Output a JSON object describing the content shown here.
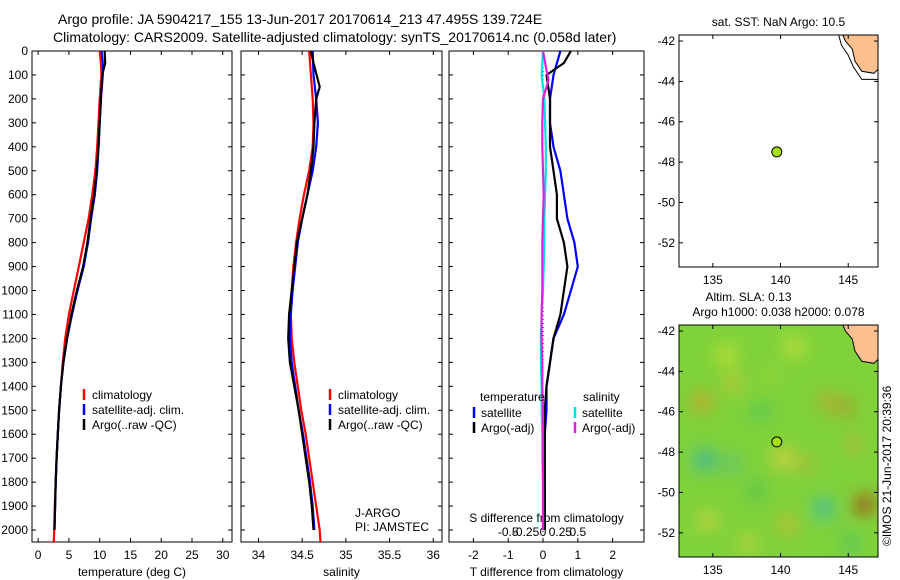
{
  "title_line1": "Argo profile: JA 5904217_155 13-Jun-2017 20170614_213 47.495S 139.724E",
  "title_line2": "Climatology: CARS2009. Satellite-adjusted climatology: synTS_20170614.nc (0.058d later)",
  "colors": {
    "clim": "#ff0000",
    "sat": "#0000ff",
    "argo": "#000000",
    "sat_s": "#00e0e0",
    "argo_s": "#e020e0",
    "land": "#ffc090",
    "float": "#a8e000"
  },
  "depth_axis": {
    "ticks": [
      0,
      100,
      200,
      300,
      400,
      500,
      600,
      700,
      800,
      900,
      1000,
      1100,
      1200,
      1300,
      1400,
      1500,
      1600,
      1700,
      1800,
      1900,
      2000
    ],
    "ylim": [
      0,
      2050
    ]
  },
  "chart_data": [
    {
      "id": "temperature",
      "type": "line",
      "xlabel": "temperature (deg C)",
      "xlim": [
        -1,
        31.5
      ],
      "xticks": [
        0,
        5,
        10,
        15,
        20,
        25,
        30
      ],
      "legend": [
        "climatology",
        "satellite-adj. clim.",
        "Argo(..raw -QC)"
      ],
      "series": [
        {
          "name": "climatology",
          "color": "clim",
          "points": [
            [
              10,
              0
            ],
            [
              10.2,
              50
            ],
            [
              10.3,
              100
            ],
            [
              10,
              200
            ],
            [
              9.8,
              300
            ],
            [
              9.6,
              400
            ],
            [
              9.3,
              500
            ],
            [
              8.8,
              600
            ],
            [
              8.2,
              700
            ],
            [
              7.4,
              800
            ],
            [
              6.6,
              900
            ],
            [
              5.8,
              1000
            ],
            [
              5.0,
              1100
            ],
            [
              4.4,
              1200
            ],
            [
              4.0,
              1300
            ],
            [
              3.7,
              1400
            ],
            [
              3.4,
              1500
            ],
            [
              3.2,
              1600
            ],
            [
              3.0,
              1700
            ],
            [
              2.85,
              1800
            ],
            [
              2.7,
              1900
            ],
            [
              2.6,
              2000
            ],
            [
              2.55,
              2050
            ]
          ]
        },
        {
          "name": "satellite-adj. clim.",
          "color": "sat",
          "points": [
            [
              10.3,
              0
            ],
            [
              10.5,
              50
            ],
            [
              10.5,
              100
            ],
            [
              10.2,
              200
            ],
            [
              10,
              300
            ],
            [
              9.8,
              400
            ],
            [
              9.6,
              500
            ],
            [
              9.2,
              600
            ],
            [
              8.6,
              700
            ],
            [
              8.1,
              800
            ],
            [
              7.4,
              900
            ],
            [
              6.4,
              1000
            ],
            [
              5.5,
              1100
            ],
            [
              4.7,
              1200
            ],
            [
              4.1,
              1300
            ],
            [
              3.7,
              1400
            ],
            [
              3.4,
              1500
            ],
            [
              3.2,
              1600
            ],
            [
              3.0,
              1700
            ],
            [
              2.85,
              1800
            ],
            [
              2.75,
              1900
            ],
            [
              2.65,
              2000
            ]
          ]
        },
        {
          "name": "Argo(..raw -QC)",
          "color": "argo",
          "points": [
            [
              10.8,
              0
            ],
            [
              10.9,
              50
            ],
            [
              10.4,
              100
            ],
            [
              10.2,
              200
            ],
            [
              10,
              300
            ],
            [
              9.8,
              400
            ],
            [
              9.5,
              500
            ],
            [
              9.1,
              600
            ],
            [
              8.5,
              700
            ],
            [
              8.0,
              800
            ],
            [
              7.3,
              900
            ],
            [
              6.3,
              1000
            ],
            [
              5.4,
              1100
            ],
            [
              4.7,
              1200
            ],
            [
              4.1,
              1300
            ],
            [
              3.7,
              1400
            ],
            [
              3.4,
              1500
            ],
            [
              3.2,
              1600
            ],
            [
              3.0,
              1700
            ],
            [
              2.85,
              1800
            ],
            [
              2.75,
              1900
            ],
            [
              2.65,
              2000
            ]
          ]
        }
      ]
    },
    {
      "id": "salinity",
      "type": "line",
      "xlabel": "salinity",
      "xlim": [
        33.8,
        36.1
      ],
      "xticks": [
        34,
        34.5,
        35,
        35.5,
        36
      ],
      "xticklabels": [
        "34",
        "34.5",
        "35",
        "35.5",
        "36"
      ],
      "legend": [
        "climatology",
        "satellite-adj. clim.",
        "Argo(..raw -QC)"
      ],
      "annotations": [
        "J-ARGO",
        "PI: JAMSTEC"
      ],
      "series": [
        {
          "name": "climatology",
          "color": "clim",
          "points": [
            [
              34.58,
              0
            ],
            [
              34.6,
              100
            ],
            [
              34.62,
              200
            ],
            [
              34.63,
              300
            ],
            [
              34.62,
              400
            ],
            [
              34.58,
              500
            ],
            [
              34.52,
              600
            ],
            [
              34.47,
              700
            ],
            [
              34.43,
              800
            ],
            [
              34.4,
              900
            ],
            [
              34.38,
              1000
            ],
            [
              34.37,
              1100
            ],
            [
              34.38,
              1200
            ],
            [
              34.41,
              1300
            ],
            [
              34.45,
              1400
            ],
            [
              34.49,
              1500
            ],
            [
              34.54,
              1600
            ],
            [
              34.58,
              1700
            ],
            [
              34.62,
              1800
            ],
            [
              34.66,
              1900
            ],
            [
              34.7,
              2000
            ],
            [
              34.71,
              2050
            ]
          ]
        },
        {
          "name": "satellite-adj. clim.",
          "color": "sat",
          "points": [
            [
              34.62,
              0
            ],
            [
              34.63,
              100
            ],
            [
              34.66,
              200
            ],
            [
              34.68,
              300
            ],
            [
              34.66,
              400
            ],
            [
              34.62,
              500
            ],
            [
              34.56,
              600
            ],
            [
              34.5,
              700
            ],
            [
              34.45,
              800
            ],
            [
              34.42,
              900
            ],
            [
              34.39,
              1000
            ],
            [
              34.37,
              1100
            ],
            [
              34.36,
              1200
            ],
            [
              34.38,
              1300
            ],
            [
              34.42,
              1400
            ],
            [
              34.46,
              1500
            ],
            [
              34.51,
              1600
            ],
            [
              34.55,
              1700
            ],
            [
              34.59,
              1800
            ],
            [
              34.62,
              1900
            ],
            [
              34.64,
              2000
            ]
          ]
        },
        {
          "name": "Argo(..raw -QC)",
          "color": "argo",
          "points": [
            [
              34.6,
              0
            ],
            [
              34.63,
              50
            ],
            [
              34.7,
              150
            ],
            [
              34.66,
              200
            ],
            [
              34.64,
              300
            ],
            [
              34.63,
              400
            ],
            [
              34.6,
              500
            ],
            [
              34.56,
              600
            ],
            [
              34.5,
              700
            ],
            [
              34.44,
              800
            ],
            [
              34.41,
              900
            ],
            [
              34.38,
              1000
            ],
            [
              34.35,
              1100
            ],
            [
              34.34,
              1200
            ],
            [
              34.36,
              1300
            ],
            [
              34.41,
              1400
            ],
            [
              34.46,
              1500
            ],
            [
              34.5,
              1600
            ],
            [
              34.54,
              1700
            ],
            [
              34.58,
              1800
            ],
            [
              34.61,
              1900
            ],
            [
              34.63,
              2000
            ]
          ]
        }
      ]
    },
    {
      "id": "difference",
      "type": "line",
      "xlabel": "T difference from climatology",
      "xlabel2": "S difference from climatology",
      "xlim": [
        -2.7,
        2.9
      ],
      "xticks": [
        -2,
        -1,
        0,
        1,
        2
      ],
      "xticks2": [
        -0.5,
        -0.25,
        0,
        0.25,
        0.5
      ],
      "xticklabels2": [
        "-0.5",
        "-0.25",
        "0",
        "0.25",
        "0.5"
      ],
      "legend_title_t": "temperature",
      "legend_title_s": "salinity",
      "legend_t": [
        "satellite",
        "Argo(-adj)"
      ],
      "legend_s": [
        "satellite",
        "Argo(-adj)"
      ],
      "series": [
        {
          "name": "T satellite",
          "color": "sat",
          "points": [
            [
              0.5,
              0
            ],
            [
              0.3,
              100
            ],
            [
              0.2,
              200
            ],
            [
              0.2,
              300
            ],
            [
              0.3,
              400
            ],
            [
              0.5,
              500
            ],
            [
              0.6,
              600
            ],
            [
              0.7,
              700
            ],
            [
              0.9,
              800
            ],
            [
              1.0,
              900
            ],
            [
              0.8,
              1000
            ],
            [
              0.6,
              1100
            ],
            [
              0.3,
              1200
            ],
            [
              0.2,
              1300
            ],
            [
              0.1,
              1400
            ],
            [
              0.1,
              1500
            ],
            [
              0.05,
              1600
            ],
            [
              0.05,
              1700
            ],
            [
              0.05,
              1800
            ],
            [
              0.05,
              1900
            ],
            [
              0.05,
              2000
            ]
          ]
        },
        {
          "name": "T Argo(-adj)",
          "color": "argo",
          "points": [
            [
              0.8,
              0
            ],
            [
              0.6,
              50
            ],
            [
              0.1,
              100
            ],
            [
              0.2,
              200
            ],
            [
              0.2,
              300
            ],
            [
              0.2,
              400
            ],
            [
              0.3,
              500
            ],
            [
              0.4,
              600
            ],
            [
              0.4,
              700
            ],
            [
              0.6,
              800
            ],
            [
              0.7,
              900
            ],
            [
              0.6,
              1000
            ],
            [
              0.5,
              1100
            ],
            [
              0.3,
              1200
            ],
            [
              0.2,
              1300
            ],
            [
              0.1,
              1400
            ],
            [
              0.05,
              1500
            ],
            [
              0.05,
              1600
            ],
            [
              0.05,
              1700
            ],
            [
              0.05,
              1800
            ],
            [
              0.05,
              1900
            ],
            [
              0.05,
              2000
            ]
          ]
        },
        {
          "name": "S satellite",
          "color": "sat_s",
          "points": [
            [
              0.0,
              0
            ],
            [
              -0.02,
              100
            ],
            [
              0.02,
              200
            ],
            [
              0.03,
              300
            ],
            [
              0.04,
              400
            ],
            [
              0.04,
              500
            ],
            [
              0.03,
              600
            ],
            [
              0.02,
              700
            ],
            [
              0.02,
              800
            ],
            [
              0.01,
              900
            ],
            [
              0.0,
              1000
            ],
            [
              -0.02,
              1100
            ],
            [
              -0.03,
              1200
            ],
            [
              -0.03,
              1300
            ],
            [
              -0.02,
              1400
            ],
            [
              -0.02,
              1500
            ],
            [
              -0.01,
              1600
            ],
            [
              -0.01,
              1700
            ],
            [
              0.0,
              1800
            ],
            [
              0.0,
              1900
            ],
            [
              0.0,
              2000
            ]
          ]
        },
        {
          "name": "S Argo(-adj)",
          "color": "argo_s",
          "points": [
            [
              0.0,
              0
            ],
            [
              0.05,
              80
            ],
            [
              0.08,
              120
            ],
            [
              0.0,
              200
            ],
            [
              -0.01,
              300
            ],
            [
              -0.01,
              400
            ],
            [
              0.0,
              500
            ],
            [
              0.01,
              600
            ],
            [
              0.0,
              700
            ],
            [
              -0.01,
              800
            ],
            [
              -0.01,
              900
            ],
            [
              -0.01,
              1000
            ],
            [
              -0.02,
              1100
            ],
            [
              -0.02,
              1200
            ],
            [
              -0.01,
              1300
            ],
            [
              -0.01,
              1400
            ],
            [
              0.0,
              1500
            ],
            [
              0.0,
              1600
            ],
            [
              0.0,
              1700
            ],
            [
              0.0,
              1800
            ],
            [
              0.0,
              1900
            ],
            [
              0.0,
              2000
            ]
          ]
        }
      ]
    }
  ],
  "map_sst": {
    "title": "sat. SST: NaN Argo: 10.5",
    "xlim": [
      132.5,
      147.2
    ],
    "ylim": [
      -53.2,
      -41.7
    ],
    "xticks": [
      135,
      140,
      145
    ],
    "yticks": [
      -42,
      -44,
      -46,
      -48,
      -50,
      -52
    ],
    "float_pos": [
      139.724,
      -47.495
    ]
  },
  "map_sla": {
    "title": "Altim. SLA: 0.13",
    "subtitle": "Argo h1000: 0.038 h2000: 0.078",
    "xlim": [
      132.5,
      147.2
    ],
    "ylim": [
      -53.2,
      -41.7
    ],
    "xticks": [
      135,
      140,
      145
    ],
    "yticks": [
      -42,
      -44,
      -46,
      -48,
      -50,
      -52
    ],
    "float_pos": [
      139.724,
      -47.495
    ]
  },
  "footer": "©IMOS 21-Jun-2017 20:39:36"
}
